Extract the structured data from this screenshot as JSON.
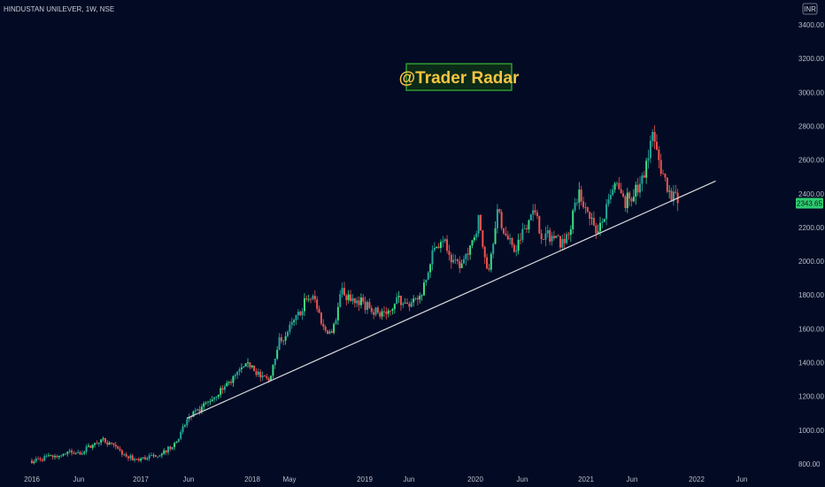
{
  "symbol_title": "HINDUSTAN UNILEVER, 1W, NSE",
  "currency": "INR",
  "watermark": "@Trader Radar",
  "colors": {
    "background": "#030b24",
    "up": "#26a69a",
    "up_bright": "#3ddc84",
    "down": "#ef5350",
    "trendline": "#d6d9e0",
    "price_tag": "#2ecc71",
    "watermark_text": "#f5c542",
    "watermark_border": "#2e9a2e",
    "watermark_bg": "#0c2a18"
  },
  "chart_data": {
    "type": "candlestick",
    "title": "HINDUSTAN UNILEVER, 1W, NSE",
    "ylim": [
      760,
      3460
    ],
    "y_ticks": [
      "800.00",
      "1000.00",
      "1200.00",
      "1400.00",
      "1600.00",
      "1800.00",
      "2000.00",
      "2200.00",
      "2400.00",
      "2600.00",
      "2800.00",
      "3000.00",
      "3200.00",
      "3400.00"
    ],
    "x_ticks": [
      "2016",
      "Jun",
      "2017",
      "Jun",
      "2018",
      "May",
      "2019",
      "Jun",
      "2020",
      "Jun",
      "2021",
      "Jun",
      "2022",
      "Jun"
    ],
    "last_price": "2343.65",
    "trendline": {
      "start": [
        "Jun 2017",
        1070
      ],
      "end": [
        "Apr 2022",
        2475
      ]
    },
    "close_path": [
      [
        "Jan 2016",
        820
      ],
      [
        "Mar 2016",
        840
      ],
      [
        "Apr 2016",
        850
      ],
      [
        "May 2016",
        870
      ],
      [
        "Jun 2016",
        860
      ],
      [
        "Aug 2016",
        920
      ],
      [
        "Sep 2016",
        940
      ],
      [
        "Nov 2016",
        860
      ],
      [
        "Dec 2016",
        830
      ],
      [
        "Jan 2017",
        830
      ],
      [
        "Mar 2017",
        860
      ],
      [
        "Apr 2017",
        890
      ],
      [
        "May 2017",
        940
      ],
      [
        "Jun 2017",
        1060
      ],
      [
        "Aug 2017",
        1150
      ],
      [
        "Oct 2017",
        1250
      ],
      [
        "Nov 2017",
        1300
      ],
      [
        "Dec 2017",
        1360
      ],
      [
        "Jan 2018",
        1390
      ],
      [
        "Feb 2018",
        1320
      ],
      [
        "Mar 2018",
        1290
      ],
      [
        "Apr 2018",
        1520
      ],
      [
        "May 2018",
        1580
      ],
      [
        "Jun 2018",
        1660
      ],
      [
        "Jul 2018",
        1770
      ],
      [
        "Aug 2018",
        1780
      ],
      [
        "Sep 2018",
        1600
      ],
      [
        "Oct 2018",
        1580
      ],
      [
        "Nov 2018",
        1830
      ],
      [
        "Dec 2018",
        1760
      ],
      [
        "Jan 2019",
        1770
      ],
      [
        "Feb 2019",
        1720
      ],
      [
        "Mar 2019",
        1700
      ],
      [
        "Apr 2019",
        1690
      ],
      [
        "May 2019",
        1780
      ],
      [
        "Jun 2019",
        1740
      ],
      [
        "Jul 2019",
        1750
      ],
      [
        "Aug 2019",
        1840
      ],
      [
        "Sep 2019",
        2050
      ],
      [
        "Oct 2019",
        2150
      ],
      [
        "Nov 2019",
        2000
      ],
      [
        "Dec 2019",
        1960
      ],
      [
        "Jan 2020",
        2050
      ],
      [
        "Feb 2020",
        2250
      ],
      [
        "Mar 2020",
        1900
      ],
      [
        "Apr 2020",
        2300
      ],
      [
        "May 2020",
        2150
      ],
      [
        "Jun 2020",
        2050
      ],
      [
        "Jul 2020",
        2200
      ],
      [
        "Aug 2020",
        2300
      ],
      [
        "Sep 2020",
        2150
      ],
      [
        "Oct 2020",
        2150
      ],
      [
        "Nov 2020",
        2100
      ],
      [
        "Dec 2020",
        2200
      ],
      [
        "Jan 2021",
        2400
      ],
      [
        "Feb 2021",
        2300
      ],
      [
        "Mar 2021",
        2150
      ],
      [
        "Apr 2021",
        2300
      ],
      [
        "May 2021",
        2450
      ],
      [
        "Jun 2021",
        2350
      ],
      [
        "Jul 2021",
        2400
      ],
      [
        "Aug 2021",
        2500
      ],
      [
        "Sep 2021",
        2750
      ],
      [
        "Oct 2021",
        2550
      ],
      [
        "Nov 2021",
        2400
      ],
      [
        "Dec 2021",
        2343.65
      ]
    ]
  }
}
